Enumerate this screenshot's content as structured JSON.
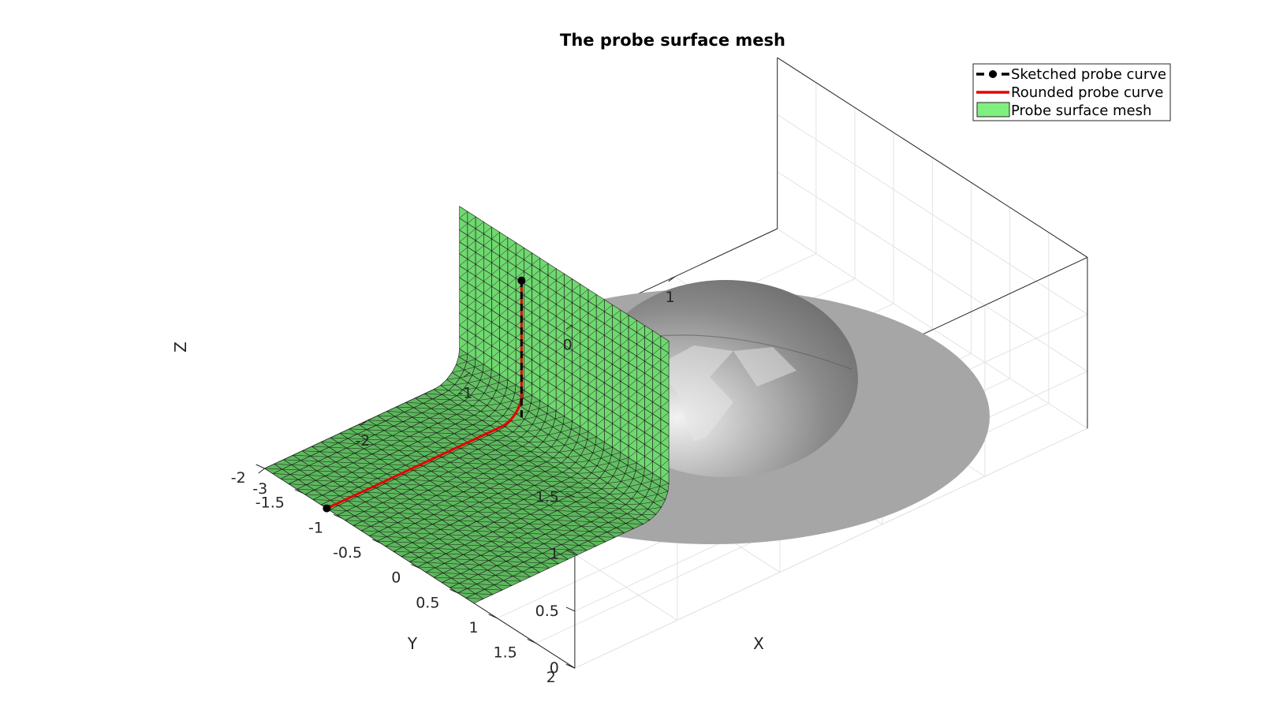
{
  "chart_data": {
    "type": "3d-surface",
    "title": "The probe surface mesh",
    "xlabel": "X",
    "ylabel": "Y",
    "zlabel": "Z",
    "xlim": [
      -3,
      2
    ],
    "ylim": [
      -2,
      2
    ],
    "zlim": [
      0,
      1.5
    ],
    "xticks": [
      "-3",
      "-2",
      "-1",
      "0",
      "1"
    ],
    "yticks": [
      "-2",
      "-1.5",
      "-1",
      "-0.5",
      "0",
      "0.5",
      "1",
      "1.5",
      "2"
    ],
    "zticks": [
      "0",
      "0.5",
      "1",
      "1.5"
    ],
    "grid": true,
    "legend_position": "top-right",
    "legend": [
      {
        "label": "Sketched probe curve",
        "color": "#000000",
        "style": "dashed-marker"
      },
      {
        "label": "Rounded probe curve",
        "color": "#e60000",
        "style": "solid"
      },
      {
        "label": "Probe surface mesh",
        "color": "#7ff07f",
        "style": "patch"
      }
    ],
    "series": [
      {
        "name": "Sketched probe curve",
        "points": [
          [
            -3,
            -1.2,
            0
          ],
          [
            -1.1,
            -1.2,
            0
          ],
          [
            -1.1,
            -1.2,
            1.2
          ]
        ]
      },
      {
        "name": "Rounded probe curve",
        "points": [
          [
            -3,
            -1.2,
            0
          ],
          [
            -1.3,
            -1.2,
            0
          ],
          [
            -1.13,
            -1.2,
            0.07
          ],
          [
            -1.1,
            -1.2,
            0.25
          ],
          [
            -1.1,
            -1.2,
            1.2
          ]
        ]
      }
    ],
    "surface": {
      "name": "Probe surface mesh",
      "color": "#7ff07f",
      "extent": {
        "x": [
          -3,
          -1.1
        ],
        "y": [
          -2,
          0.7
        ],
        "z": [
          0,
          1.5
        ]
      }
    },
    "objects": [
      {
        "name": "hemisphere",
        "center": [
          0,
          0,
          0
        ],
        "radius": 1,
        "color": "#8c8c8c"
      },
      {
        "name": "disc",
        "center": [
          0,
          0,
          0
        ],
        "radius": 2,
        "color": "#a6a6a6"
      }
    ]
  }
}
